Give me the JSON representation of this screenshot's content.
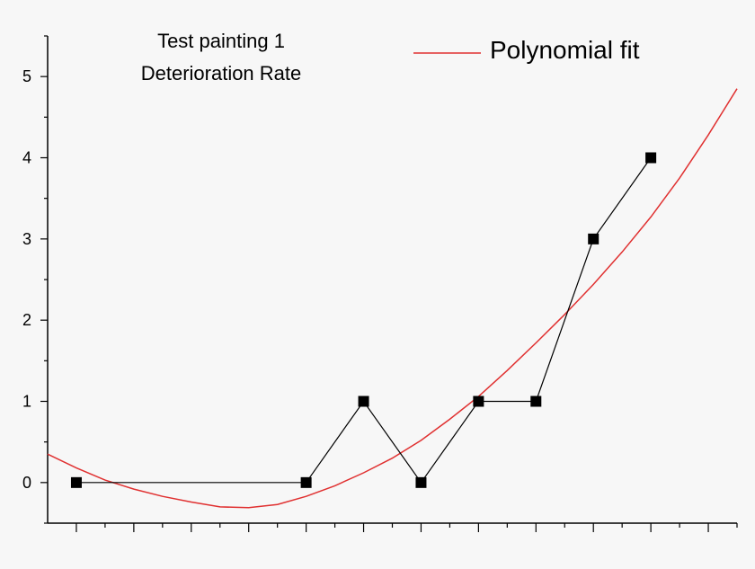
{
  "chart_data": {
    "type": "line",
    "title_lines": [
      "Test painting 1",
      "Deterioration Rate"
    ],
    "xlabel": "",
    "ylabel": "",
    "xlim": [
      0.5,
      12.5
    ],
    "ylim": [
      -0.5,
      5.5
    ],
    "yticks": [
      0,
      1,
      2,
      3,
      4,
      5
    ],
    "series": [
      {
        "type": "line-markers",
        "color": "#000000",
        "x": [
          1,
          5,
          6,
          7,
          8,
          9,
          10,
          11
        ],
        "y": [
          0,
          0,
          1,
          0,
          1,
          1,
          3,
          4
        ]
      },
      {
        "name": "Polynomial fit",
        "type": "line",
        "color": "#e03030",
        "x": [
          0.5,
          1,
          1.5,
          2,
          2.5,
          3,
          3.5,
          4,
          4.5,
          5,
          5.5,
          6,
          6.5,
          7,
          7.5,
          8,
          8.5,
          9,
          9.5,
          10,
          10.5,
          11,
          11.5,
          12,
          12.5
        ],
        "y": [
          0.35,
          0.18,
          0.03,
          -0.08,
          -0.17,
          -0.24,
          -0.3,
          -0.31,
          -0.27,
          -0.17,
          -0.04,
          0.12,
          0.3,
          0.52,
          0.78,
          1.06,
          1.38,
          1.72,
          2.07,
          2.44,
          2.84,
          3.27,
          3.75,
          4.28,
          4.85
        ]
      }
    ],
    "legend": {
      "placement": "top-right",
      "entries": [
        "Polynomial fit"
      ]
    }
  }
}
